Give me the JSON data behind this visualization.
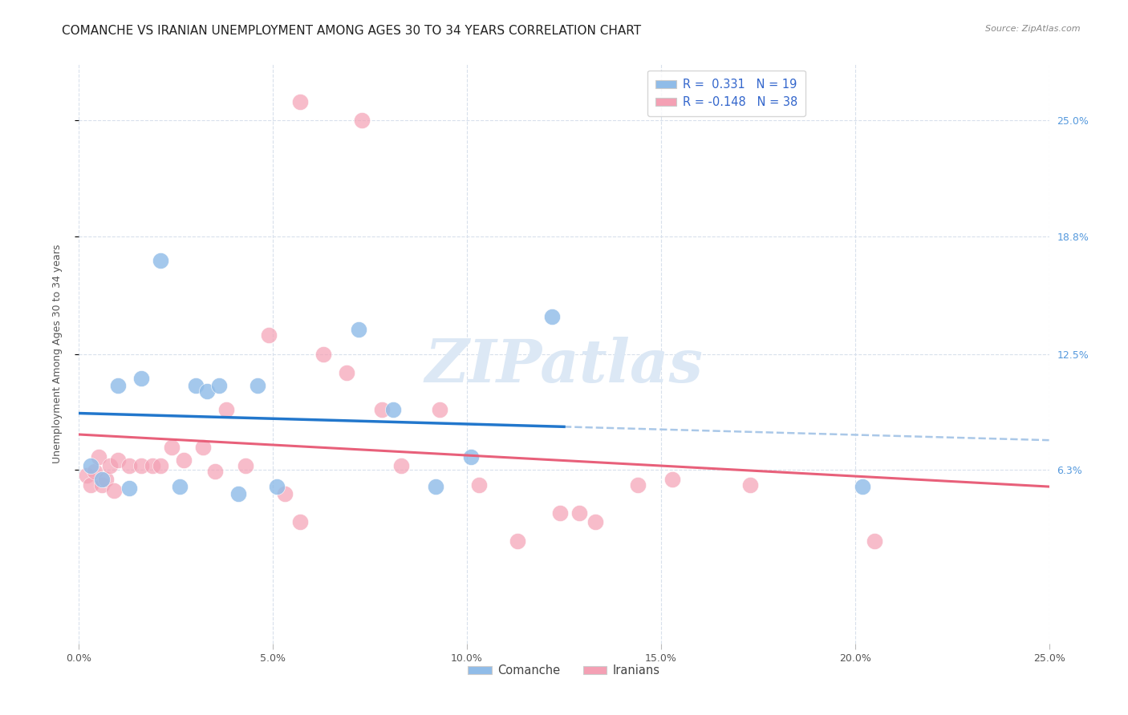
{
  "title": "COMANCHE VS IRANIAN UNEMPLOYMENT AMONG AGES 30 TO 34 YEARS CORRELATION CHART",
  "source": "Source: ZipAtlas.com",
  "ylabel": "Unemployment Among Ages 30 to 34 years",
  "ytick_values": [
    6.3,
    12.5,
    18.8,
    25.0
  ],
  "xlim": [
    0.0,
    25.0
  ],
  "ylim": [
    -3.0,
    28.0
  ],
  "comanche_color": "#90bce8",
  "iranians_color": "#f4a0b4",
  "comanche_line_color": "#2277cc",
  "iranians_line_color": "#e8607a",
  "comanche_dashed_color": "#aac8e8",
  "background_color": "#ffffff",
  "grid_color": "#d8e0ec",
  "watermark_color": "#dce8f5",
  "legend_r1_label": "R =  0.331   N = 19",
  "legend_r2_label": "R = -0.148   N = 38",
  "legend_comanche": "Comanche",
  "legend_iranians": "Iranians",
  "comanche_scatter": [
    [
      0.3,
      6.5
    ],
    [
      0.6,
      5.8
    ],
    [
      1.0,
      10.8
    ],
    [
      1.3,
      5.3
    ],
    [
      1.6,
      11.2
    ],
    [
      2.1,
      17.5
    ],
    [
      2.6,
      5.4
    ],
    [
      3.0,
      10.8
    ],
    [
      3.3,
      10.5
    ],
    [
      3.6,
      10.8
    ],
    [
      4.1,
      5.0
    ],
    [
      4.6,
      10.8
    ],
    [
      5.1,
      5.4
    ],
    [
      7.2,
      13.8
    ],
    [
      8.1,
      9.5
    ],
    [
      9.2,
      5.4
    ],
    [
      10.1,
      7.0
    ],
    [
      12.2,
      14.5
    ],
    [
      20.2,
      5.4
    ]
  ],
  "iranians_scatter": [
    [
      0.2,
      6.0
    ],
    [
      0.3,
      5.5
    ],
    [
      0.4,
      6.2
    ],
    [
      0.5,
      7.0
    ],
    [
      0.6,
      5.5
    ],
    [
      0.7,
      5.8
    ],
    [
      0.8,
      6.5
    ],
    [
      0.9,
      5.2
    ],
    [
      1.0,
      6.8
    ],
    [
      1.3,
      6.5
    ],
    [
      1.6,
      6.5
    ],
    [
      1.9,
      6.5
    ],
    [
      2.1,
      6.5
    ],
    [
      2.4,
      7.5
    ],
    [
      2.7,
      6.8
    ],
    [
      3.2,
      7.5
    ],
    [
      3.5,
      6.2
    ],
    [
      3.8,
      9.5
    ],
    [
      4.3,
      6.5
    ],
    [
      4.9,
      13.5
    ],
    [
      5.3,
      5.0
    ],
    [
      5.7,
      3.5
    ],
    [
      6.3,
      12.5
    ],
    [
      6.9,
      11.5
    ],
    [
      7.8,
      9.5
    ],
    [
      8.3,
      6.5
    ],
    [
      9.3,
      9.5
    ],
    [
      10.3,
      5.5
    ],
    [
      11.3,
      2.5
    ],
    [
      12.4,
      4.0
    ],
    [
      13.3,
      3.5
    ],
    [
      14.4,
      5.5
    ],
    [
      15.3,
      5.8
    ],
    [
      17.3,
      5.5
    ],
    [
      5.7,
      26.0
    ],
    [
      7.3,
      25.0
    ],
    [
      12.9,
      4.0
    ],
    [
      20.5,
      2.5
    ]
  ],
  "solid_line_x_end": 12.5,
  "xtick_positions": [
    0,
    5,
    10,
    15,
    20,
    25
  ],
  "xtick_labels": [
    "0.0%",
    "5.0%",
    "10.0%",
    "15.0%",
    "20.0%",
    "25.0%"
  ],
  "title_fontsize": 11,
  "axis_fontsize": 9,
  "right_tick_color": "#5599dd"
}
